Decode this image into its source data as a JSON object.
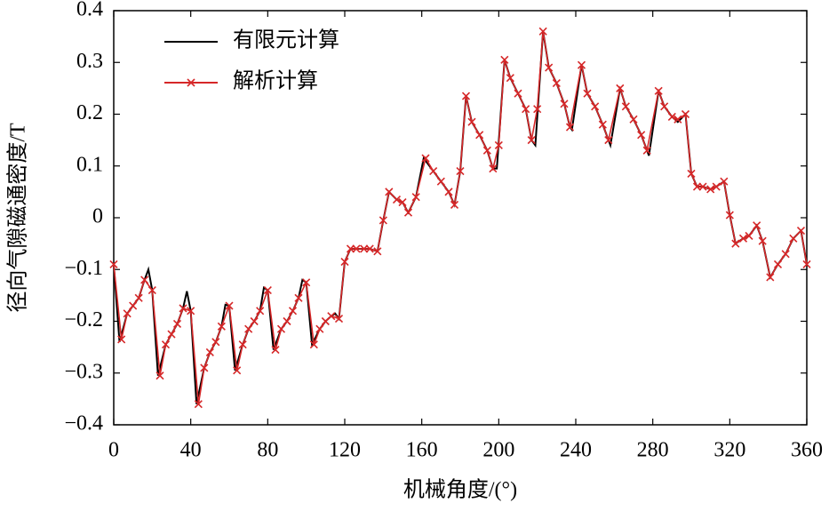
{
  "chart_data": {
    "type": "line",
    "xlabel": "机械角度/(°)",
    "ylabel": "径向气隙磁通密度/T",
    "xlim": [
      0,
      360
    ],
    "xticks": [
      0,
      40,
      80,
      120,
      160,
      200,
      240,
      280,
      320,
      360
    ],
    "ylim": [
      -0.4,
      0.4
    ],
    "yticks": [
      {
        "value": -0.4,
        "label": "−0.4"
      },
      {
        "value": -0.3,
        "label": "−0.3"
      },
      {
        "value": -0.2,
        "label": "−0.2"
      },
      {
        "value": -0.1,
        "label": "−0.1"
      },
      0,
      0.1,
      0.2,
      0.3,
      0.4
    ],
    "legend": "upper left",
    "series": [
      {
        "name": "有限元计算",
        "color": "#000000",
        "marker": "none",
        "x": [
          0,
          3,
          7,
          10,
          13,
          16,
          18,
          20,
          23,
          27,
          30,
          33,
          36,
          38,
          40,
          43,
          47,
          50,
          53,
          56,
          58,
          60,
          63,
          67,
          70,
          73,
          76,
          78,
          80,
          83,
          87,
          90,
          93,
          96,
          98,
          100,
          103,
          107,
          110,
          113,
          115,
          117,
          120,
          123,
          126,
          130,
          133,
          137,
          140,
          143,
          147,
          150,
          153,
          157,
          161,
          166,
          170,
          174,
          177,
          180,
          183,
          186,
          190,
          194,
          197,
          199,
          203,
          206,
          210,
          214,
          217,
          219,
          223,
          226,
          230,
          234,
          237,
          238,
          243,
          246,
          250,
          254,
          257,
          258,
          263,
          266,
          270,
          274,
          277,
          278,
          283,
          286,
          290,
          293,
          297,
          300,
          303,
          306,
          310,
          313,
          317,
          320,
          323,
          327,
          330,
          334,
          337,
          341,
          345,
          349,
          353,
          357,
          360
        ],
        "values": [
          -0.09,
          -0.24,
          -0.185,
          -0.17,
          -0.155,
          -0.12,
          -0.1,
          -0.14,
          -0.305,
          -0.245,
          -0.225,
          -0.205,
          -0.175,
          -0.142,
          -0.18,
          -0.36,
          -0.29,
          -0.26,
          -0.24,
          -0.21,
          -0.168,
          -0.17,
          -0.295,
          -0.245,
          -0.215,
          -0.2,
          -0.18,
          -0.135,
          -0.14,
          -0.255,
          -0.215,
          -0.2,
          -0.18,
          -0.155,
          -0.12,
          -0.125,
          -0.245,
          -0.215,
          -0.2,
          -0.19,
          -0.185,
          -0.195,
          -0.085,
          -0.06,
          -0.06,
          -0.06,
          -0.06,
          -0.065,
          -0.005,
          0.05,
          0.035,
          0.03,
          0.01,
          0.04,
          0.115,
          0.09,
          0.07,
          0.05,
          0.025,
          0.09,
          0.235,
          0.185,
          0.16,
          0.13,
          0.095,
          0.095,
          0.305,
          0.27,
          0.24,
          0.21,
          0.15,
          0.14,
          0.36,
          0.29,
          0.26,
          0.22,
          0.175,
          0.17,
          0.295,
          0.24,
          0.215,
          0.18,
          0.15,
          0.14,
          0.25,
          0.215,
          0.19,
          0.16,
          0.13,
          0.12,
          0.245,
          0.215,
          0.195,
          0.185,
          0.2,
          0.085,
          0.06,
          0.06,
          0.055,
          0.06,
          0.07,
          0.005,
          -0.05,
          -0.04,
          -0.035,
          -0.015,
          -0.045,
          -0.115,
          -0.09,
          -0.07,
          -0.04,
          -0.025,
          -0.09
        ]
      },
      {
        "name": "解析计算",
        "color": "#d62728",
        "marker": "x",
        "x": [
          0,
          4,
          7,
          10,
          13,
          16,
          20,
          24,
          27,
          30,
          33,
          36,
          40,
          44,
          47,
          50,
          53,
          56,
          60,
          64,
          67,
          70,
          73,
          76,
          80,
          84,
          87,
          90,
          93,
          96,
          100,
          104,
          107,
          110,
          113,
          117,
          120,
          123,
          126,
          130,
          133,
          137,
          140,
          143,
          147,
          150,
          153,
          157,
          162,
          166,
          170,
          174,
          177,
          180,
          183,
          186,
          190,
          194,
          197,
          200,
          203,
          206,
          210,
          214,
          217,
          220,
          223,
          226,
          230,
          234,
          237,
          243,
          246,
          250,
          254,
          257,
          263,
          266,
          270,
          274,
          277,
          283,
          286,
          290,
          293,
          297,
          300,
          303,
          306,
          310,
          313,
          317,
          320,
          323,
          327,
          330,
          334,
          337,
          341,
          345,
          349,
          353,
          357,
          360
        ],
        "values": [
          -0.09,
          -0.235,
          -0.185,
          -0.17,
          -0.155,
          -0.12,
          -0.14,
          -0.305,
          -0.245,
          -0.225,
          -0.205,
          -0.175,
          -0.18,
          -0.36,
          -0.29,
          -0.26,
          -0.24,
          -0.21,
          -0.17,
          -0.295,
          -0.245,
          -0.215,
          -0.2,
          -0.18,
          -0.14,
          -0.255,
          -0.215,
          -0.2,
          -0.18,
          -0.155,
          -0.125,
          -0.245,
          -0.215,
          -0.2,
          -0.19,
          -0.195,
          -0.085,
          -0.06,
          -0.06,
          -0.06,
          -0.06,
          -0.065,
          -0.005,
          0.05,
          0.035,
          0.03,
          0.01,
          0.04,
          0.115,
          0.09,
          0.07,
          0.05,
          0.025,
          0.09,
          0.235,
          0.185,
          0.16,
          0.13,
          0.095,
          0.14,
          0.305,
          0.27,
          0.24,
          0.21,
          0.15,
          0.21,
          0.36,
          0.29,
          0.26,
          0.22,
          0.175,
          0.295,
          0.24,
          0.215,
          0.18,
          0.15,
          0.25,
          0.215,
          0.19,
          0.16,
          0.13,
          0.245,
          0.215,
          0.195,
          0.19,
          0.2,
          0.085,
          0.06,
          0.06,
          0.055,
          0.06,
          0.07,
          0.005,
          -0.05,
          -0.04,
          -0.035,
          -0.015,
          -0.045,
          -0.115,
          -0.09,
          -0.07,
          -0.04,
          -0.025,
          -0.09
        ]
      }
    ]
  }
}
